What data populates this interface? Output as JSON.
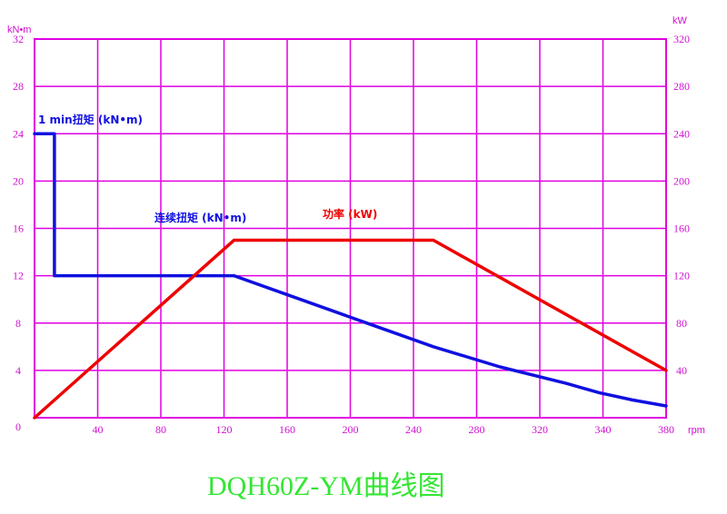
{
  "chart_data": {
    "type": "line",
    "title": "DQH60Z-YM曲线图",
    "xlabel": "rpm",
    "ylabel_left": "kN•m",
    "ylabel_right": "kW",
    "xlim": [
      0,
      380
    ],
    "ylim_left": [
      0,
      32
    ],
    "ylim_right": [
      0,
      320
    ],
    "x_ticks": [
      "40",
      "80",
      "120",
      "160",
      "200",
      "240",
      "280",
      "320",
      "340",
      "380"
    ],
    "y_ticks_left": [
      "0",
      "4",
      "8",
      "12",
      "16",
      "20",
      "24",
      "28",
      "32"
    ],
    "y_ticks_right": [
      "40",
      "80",
      "120",
      "160",
      "200",
      "240",
      "280",
      "320"
    ],
    "grid": true,
    "colors": {
      "grid": "#e000e0",
      "torque": "#1010e0",
      "power": "#ee0000",
      "title": "#33e633"
    },
    "series": [
      {
        "name": "1 min扭矩 (kN•m)",
        "axis": "left",
        "color": "#1010e0",
        "points": [
          [
            0,
            24
          ],
          [
            12,
            24
          ],
          [
            12,
            12
          ],
          [
            120,
            12
          ]
        ]
      },
      {
        "name": "连续扭矩 (kN•m)",
        "axis": "left",
        "color": "#1010e0",
        "points": [
          [
            120,
            12
          ],
          [
            160,
            10
          ],
          [
            200,
            8
          ],
          [
            240,
            6
          ],
          [
            280,
            4.3
          ],
          [
            320,
            2.9
          ],
          [
            340,
            2.1
          ],
          [
            360,
            1.5
          ],
          [
            380,
            1.0
          ]
        ]
      },
      {
        "name": "功率 (kW)",
        "axis": "right",
        "color": "#ee0000",
        "points": [
          [
            0,
            0
          ],
          [
            120,
            150
          ],
          [
            240,
            150
          ],
          [
            380,
            40
          ]
        ]
      }
    ]
  }
}
